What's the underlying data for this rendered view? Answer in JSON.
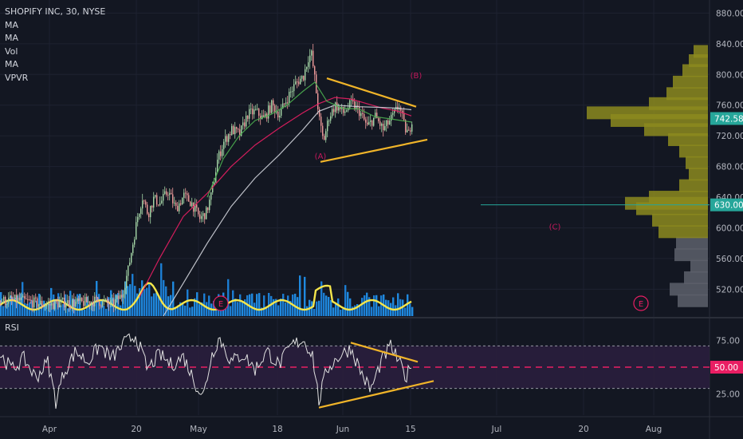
{
  "legend": {
    "symbol": "SHOPIFY INC, 30, NYSE",
    "indicators": [
      "MA",
      "MA",
      "Vol",
      "MA",
      "VPVR"
    ]
  },
  "rsi_panel": {
    "label": "RSI"
  },
  "chart_data": [
    {
      "type": "candlestick",
      "series": [
        {
          "name": "SHOPIFY INC, 30, NYSE"
        }
      ],
      "x_ticks": [
        "Apr",
        "20",
        "May",
        "18",
        "Jun",
        "15",
        "Jul",
        "20",
        "Aug"
      ],
      "y_ticks": [
        520,
        560,
        600,
        640,
        680,
        720,
        760,
        800,
        840,
        880
      ],
      "y_tick_labels": [
        "520.00",
        "560.00",
        "600.00",
        "640.00",
        "680.00",
        "720.00",
        "760.00",
        "800.00",
        "840.00",
        "880.00"
      ],
      "ylim": [
        485,
        895
      ],
      "price_path": [
        {
          "x": 0,
          "y": 505
        },
        {
          "x": 20,
          "y": 506
        },
        {
          "x": 40,
          "y": 503
        },
        {
          "x": 60,
          "y": 499
        },
        {
          "x": 80,
          "y": 503
        },
        {
          "x": 100,
          "y": 502
        },
        {
          "x": 120,
          "y": 505
        },
        {
          "x": 140,
          "y": 500
        },
        {
          "x": 152,
          "y": 512
        },
        {
          "x": 160,
          "y": 545
        },
        {
          "x": 166,
          "y": 580
        },
        {
          "x": 172,
          "y": 615
        },
        {
          "x": 178,
          "y": 640
        },
        {
          "x": 185,
          "y": 618
        },
        {
          "x": 192,
          "y": 638
        },
        {
          "x": 200,
          "y": 632
        },
        {
          "x": 210,
          "y": 648
        },
        {
          "x": 220,
          "y": 625
        },
        {
          "x": 230,
          "y": 642
        },
        {
          "x": 240,
          "y": 632
        },
        {
          "x": 250,
          "y": 612
        },
        {
          "x": 258,
          "y": 620
        },
        {
          "x": 265,
          "y": 645
        },
        {
          "x": 272,
          "y": 688
        },
        {
          "x": 280,
          "y": 712
        },
        {
          "x": 290,
          "y": 728
        },
        {
          "x": 300,
          "y": 722
        },
        {
          "x": 310,
          "y": 748
        },
        {
          "x": 320,
          "y": 752
        },
        {
          "x": 330,
          "y": 742
        },
        {
          "x": 340,
          "y": 760
        },
        {
          "x": 350,
          "y": 748
        },
        {
          "x": 360,
          "y": 770
        },
        {
          "x": 370,
          "y": 788
        },
        {
          "x": 380,
          "y": 798
        },
        {
          "x": 386,
          "y": 822
        },
        {
          "x": 390,
          "y": 826
        },
        {
          "x": 394,
          "y": 795
        },
        {
          "x": 400,
          "y": 740
        },
        {
          "x": 405,
          "y": 712
        },
        {
          "x": 412,
          "y": 745
        },
        {
          "x": 420,
          "y": 760
        },
        {
          "x": 430,
          "y": 750
        },
        {
          "x": 440,
          "y": 762
        },
        {
          "x": 450,
          "y": 752
        },
        {
          "x": 460,
          "y": 732
        },
        {
          "x": 470,
          "y": 745
        },
        {
          "x": 480,
          "y": 728
        },
        {
          "x": 490,
          "y": 742
        },
        {
          "x": 500,
          "y": 760
        },
        {
          "x": 507,
          "y": 730
        },
        {
          "x": 512,
          "y": 722
        },
        {
          "x": 516,
          "y": 742
        }
      ],
      "ma_series": [
        {
          "name": "MA",
          "color": "#e91e63",
          "points": [
            {
              "x": 175,
              "y": 510
            },
            {
              "x": 200,
              "y": 560
            },
            {
              "x": 230,
              "y": 615
            },
            {
              "x": 260,
              "y": 645
            },
            {
              "x": 290,
              "y": 680
            },
            {
              "x": 320,
              "y": 708
            },
            {
              "x": 350,
              "y": 730
            },
            {
              "x": 380,
              "y": 750
            },
            {
              "x": 400,
              "y": 762
            },
            {
              "x": 420,
              "y": 770
            },
            {
              "x": 440,
              "y": 768
            },
            {
              "x": 460,
              "y": 762
            },
            {
              "x": 480,
              "y": 756
            },
            {
              "x": 500,
              "y": 752
            },
            {
              "x": 516,
              "y": 746
            }
          ]
        },
        {
          "name": "MA",
          "color": "#d1d4dc",
          "points": [
            {
              "x": 205,
              "y": 485
            },
            {
              "x": 230,
              "y": 528
            },
            {
              "x": 260,
              "y": 580
            },
            {
              "x": 290,
              "y": 628
            },
            {
              "x": 320,
              "y": 665
            },
            {
              "x": 350,
              "y": 695
            },
            {
              "x": 380,
              "y": 728
            },
            {
              "x": 400,
              "y": 752
            },
            {
              "x": 420,
              "y": 760
            },
            {
              "x": 450,
              "y": 758
            },
            {
              "x": 480,
              "y": 757
            },
            {
              "x": 500,
              "y": 756
            },
            {
              "x": 516,
              "y": 754
            }
          ]
        },
        {
          "name": "MA",
          "color": "#4caf50",
          "points": [
            {
              "x": 260,
              "y": 640
            },
            {
              "x": 280,
              "y": 690
            },
            {
              "x": 300,
              "y": 720
            },
            {
              "x": 320,
              "y": 740
            },
            {
              "x": 340,
              "y": 748
            },
            {
              "x": 360,
              "y": 760
            },
            {
              "x": 380,
              "y": 778
            },
            {
              "x": 395,
              "y": 790
            },
            {
              "x": 410,
              "y": 765
            },
            {
              "x": 430,
              "y": 756
            },
            {
              "x": 450,
              "y": 755
            },
            {
              "x": 470,
              "y": 745
            },
            {
              "x": 490,
              "y": 742
            },
            {
              "x": 516,
              "y": 738
            }
          ]
        }
      ],
      "price_badges": [
        {
          "value": 742.58,
          "label": "742.58",
          "color": "#26a69a"
        },
        {
          "value": 630.0,
          "label": "630.00",
          "color": "#26a69a"
        }
      ],
      "annotations": [
        {
          "label": "(A)",
          "x": 402,
          "y": 690
        },
        {
          "label": "(B)",
          "x": 522,
          "y": 795
        },
        {
          "label": "(C)",
          "x": 696,
          "y": 598
        }
      ],
      "event_markers": [
        {
          "label": "E",
          "x": 277
        },
        {
          "label": "E",
          "x": 804
        }
      ],
      "triangle": {
        "upper": [
          {
            "x": 410,
            "y": 795
          },
          {
            "x": 522,
            "y": 758
          }
        ],
        "lower": [
          {
            "x": 402,
            "y": 686
          },
          {
            "x": 536,
            "y": 715
          }
        ]
      },
      "support_line": {
        "value": 630
      },
      "volume_profile": [
        {
          "price": 505,
          "width": 38
        },
        {
          "price": 520,
          "width": 48
        },
        {
          "price": 535,
          "width": 30
        },
        {
          "price": 550,
          "width": 22
        },
        {
          "price": 565,
          "width": 42
        },
        {
          "price": 580,
          "width": 40
        },
        {
          "price": 595,
          "width": 62
        },
        {
          "price": 610,
          "width": 70
        },
        {
          "price": 625,
          "width": 90
        },
        {
          "price": 632,
          "width": 104
        },
        {
          "price": 640,
          "width": 74
        },
        {
          "price": 655,
          "width": 36
        },
        {
          "price": 670,
          "width": 24
        },
        {
          "price": 685,
          "width": 28
        },
        {
          "price": 700,
          "width": 36
        },
        {
          "price": 715,
          "width": 50
        },
        {
          "price": 728,
          "width": 80
        },
        {
          "price": 740,
          "width": 122
        },
        {
          "price": 750,
          "width": 152
        },
        {
          "price": 762,
          "width": 74
        },
        {
          "price": 775,
          "width": 52
        },
        {
          "price": 790,
          "width": 44
        },
        {
          "price": 805,
          "width": 32
        },
        {
          "price": 818,
          "width": 24
        },
        {
          "price": 830,
          "width": 18
        }
      ]
    },
    {
      "type": "line",
      "series": [
        {
          "name": "RSI"
        }
      ],
      "y_ticks": [
        25,
        50,
        75
      ],
      "y_tick_labels": [
        "25.00",
        "50.00",
        "75.00"
      ],
      "ylim": [
        5,
        95
      ],
      "bands": {
        "upper": 70,
        "middle": 50,
        "lower": 30
      },
      "badge": {
        "label": "50.00",
        "color": "#e91e63"
      },
      "path": [
        {
          "x": 0,
          "y": 62
        },
        {
          "x": 15,
          "y": 48
        },
        {
          "x": 30,
          "y": 58
        },
        {
          "x": 45,
          "y": 40
        },
        {
          "x": 60,
          "y": 55
        },
        {
          "x": 70,
          "y": 18
        },
        {
          "x": 80,
          "y": 45
        },
        {
          "x": 95,
          "y": 65
        },
        {
          "x": 110,
          "y": 55
        },
        {
          "x": 125,
          "y": 70
        },
        {
          "x": 140,
          "y": 58
        },
        {
          "x": 155,
          "y": 72
        },
        {
          "x": 170,
          "y": 80
        },
        {
          "x": 185,
          "y": 48
        },
        {
          "x": 200,
          "y": 62
        },
        {
          "x": 215,
          "y": 52
        },
        {
          "x": 230,
          "y": 60
        },
        {
          "x": 245,
          "y": 35
        },
        {
          "x": 255,
          "y": 22
        },
        {
          "x": 265,
          "y": 60
        },
        {
          "x": 275,
          "y": 78
        },
        {
          "x": 290,
          "y": 55
        },
        {
          "x": 305,
          "y": 62
        },
        {
          "x": 320,
          "y": 48
        },
        {
          "x": 335,
          "y": 65
        },
        {
          "x": 350,
          "y": 52
        },
        {
          "x": 365,
          "y": 70
        },
        {
          "x": 380,
          "y": 76
        },
        {
          "x": 392,
          "y": 62
        },
        {
          "x": 400,
          "y": 18
        },
        {
          "x": 410,
          "y": 48
        },
        {
          "x": 425,
          "y": 60
        },
        {
          "x": 440,
          "y": 68
        },
        {
          "x": 455,
          "y": 42
        },
        {
          "x": 465,
          "y": 28
        },
        {
          "x": 478,
          "y": 55
        },
        {
          "x": 490,
          "y": 70
        },
        {
          "x": 502,
          "y": 52
        },
        {
          "x": 510,
          "y": 40
        },
        {
          "x": 516,
          "y": 56
        }
      ],
      "triangle": {
        "upper": [
          {
            "x": 440,
            "y": 73
          },
          {
            "x": 524,
            "y": 55
          }
        ],
        "lower": [
          {
            "x": 400,
            "y": 12
          },
          {
            "x": 544,
            "y": 37
          }
        ]
      }
    }
  ]
}
